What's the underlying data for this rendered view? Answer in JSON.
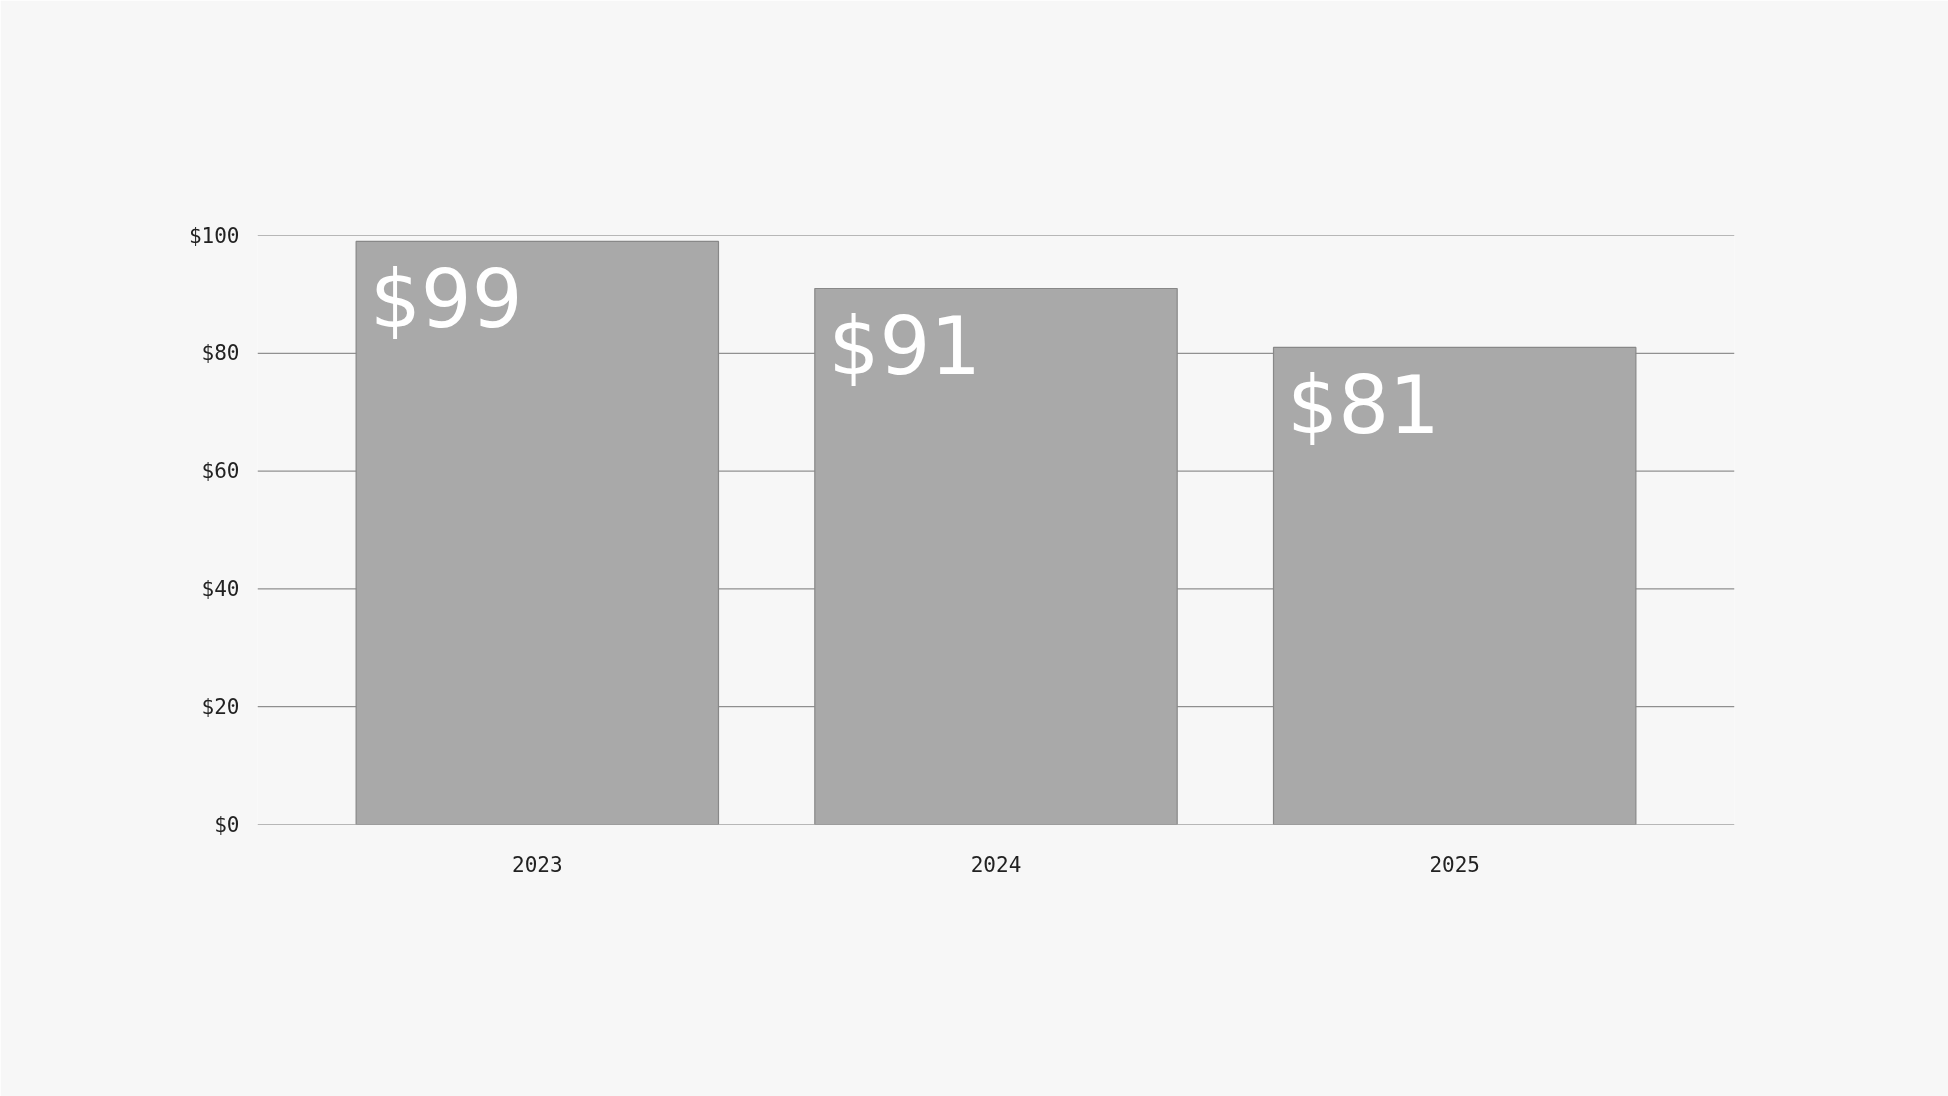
{
  "chart_data": {
    "type": "bar",
    "categories": [
      "2023",
      "2024",
      "2025"
    ],
    "values": [
      99,
      91,
      81
    ],
    "color": "#a9a9a9",
    "ylim": [
      0,
      100
    ],
    "yticks": [
      {
        "value": 0,
        "label": "$0"
      },
      {
        "value": 20,
        "label": "$20"
      },
      {
        "value": 40,
        "label": "$40"
      },
      {
        "value": 60,
        "label": "$60"
      },
      {
        "value": 80,
        "label": "$80"
      },
      {
        "value": 100,
        "label": "$100"
      }
    ],
    "value_labels": [
      "$99",
      "$91",
      "$81"
    ],
    "grid": "y"
  }
}
